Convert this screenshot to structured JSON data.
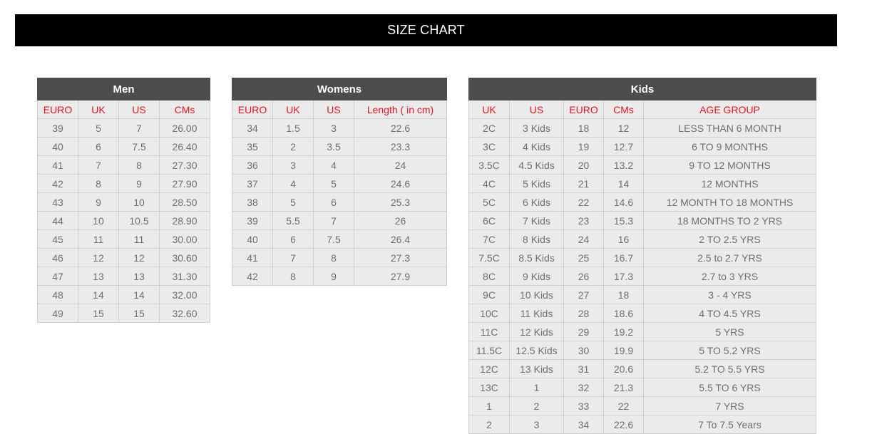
{
  "page": {
    "title": "SIZE CHART"
  },
  "men": {
    "title": "Men",
    "columns": [
      "EURO",
      "UK",
      "US",
      "CMs"
    ],
    "rows": [
      [
        "39",
        "5",
        "7",
        "26.00"
      ],
      [
        "40",
        "6",
        "7.5",
        "26.40"
      ],
      [
        "41",
        "7",
        "8",
        "27.30"
      ],
      [
        "42",
        "8",
        "9",
        "27.90"
      ],
      [
        "43",
        "9",
        "10",
        "28.50"
      ],
      [
        "44",
        "10",
        "10.5",
        "28.90"
      ],
      [
        "45",
        "11",
        "11",
        "30.00"
      ],
      [
        "46",
        "12",
        "12",
        "30.60"
      ],
      [
        "47",
        "13",
        "13",
        "31.30"
      ],
      [
        "48",
        "14",
        "14",
        "32.00"
      ],
      [
        "49",
        "15",
        "15",
        "32.60"
      ]
    ]
  },
  "women": {
    "title": "Womens",
    "columns": [
      "EURO",
      "UK",
      "US",
      "Length ( in cm)"
    ],
    "rows": [
      [
        "34",
        "1.5",
        "3",
        "22.6"
      ],
      [
        "35",
        "2",
        "3.5",
        "23.3"
      ],
      [
        "36",
        "3",
        "4",
        "24"
      ],
      [
        "37",
        "4",
        "5",
        "24.6"
      ],
      [
        "38",
        "5",
        "6",
        "25.3"
      ],
      [
        "39",
        "5.5",
        "7",
        "26"
      ],
      [
        "40",
        "6",
        "7.5",
        "26.4"
      ],
      [
        "41",
        "7",
        "8",
        "27.3"
      ],
      [
        "42",
        "8",
        "9",
        "27.9"
      ]
    ]
  },
  "kids": {
    "title": "Kids",
    "columns": [
      "UK",
      "US",
      "EURO",
      "CMs",
      "AGE GROUP"
    ],
    "rows": [
      [
        "2C",
        "3 Kids",
        "18",
        "12",
        "LESS THAN 6 MONTH"
      ],
      [
        "3C",
        "4 Kids",
        "19",
        "12.7",
        "6 TO 9 MONTHS"
      ],
      [
        "3.5C",
        "4.5 Kids",
        "20",
        "13.2",
        "9 TO 12 MONTHS"
      ],
      [
        "4C",
        "5 Kids",
        "21",
        "14",
        "12 MONTHS"
      ],
      [
        "5C",
        "6 Kids",
        "22",
        "14.6",
        "12 MONTH TO 18 MONTHS"
      ],
      [
        "6C",
        "7 Kids",
        "23",
        "15.3",
        "18 MONTHS TO 2 YRS"
      ],
      [
        "7C",
        "8 Kids",
        "24",
        "16",
        "2 TO 2.5 YRS"
      ],
      [
        "7.5C",
        "8.5 Kids",
        "25",
        "16.7",
        "2.5 to 2.7 YRS"
      ],
      [
        "8C",
        "9 Kids",
        "26",
        "17.3",
        "2.7 to 3 YRS"
      ],
      [
        "9C",
        "10 Kids",
        "27",
        "18",
        "3 - 4 YRS"
      ],
      [
        "10C",
        "11 Kids",
        "28",
        "18.6",
        "4 TO 4.5 YRS"
      ],
      [
        "11C",
        "12 Kids",
        "29",
        "19.2",
        "5 YRS"
      ],
      [
        "11.5C",
        "12.5 Kids",
        "30",
        "19.9",
        "5 TO 5.2 YRS"
      ],
      [
        "12C",
        "13 Kids",
        "31",
        "20.6",
        "5.2 TO 5.5 YRS"
      ],
      [
        "13C",
        "1",
        "32",
        "21.3",
        "5.5 TO 6 YRS"
      ],
      [
        "1",
        "2",
        "33",
        "22",
        "7 YRS"
      ],
      [
        "2",
        "3",
        "34",
        "22.6",
        "7 To 7.5 Years"
      ]
    ]
  }
}
